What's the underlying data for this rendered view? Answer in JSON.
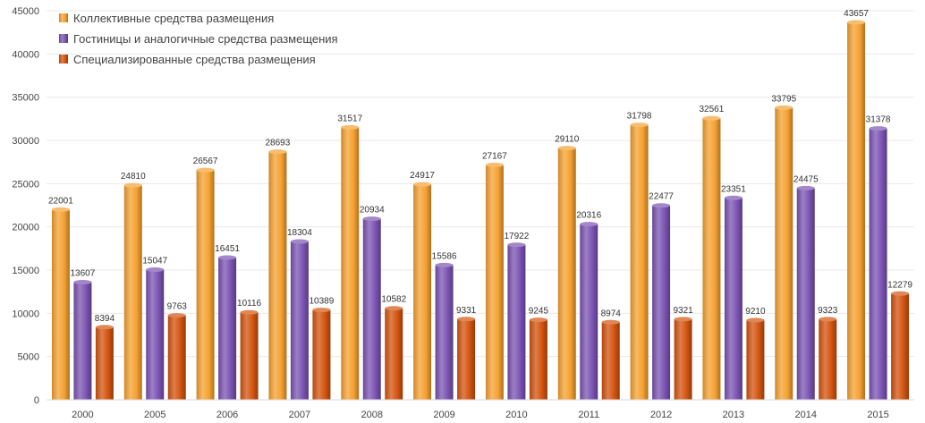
{
  "chart_data": {
    "type": "bar",
    "title": "",
    "xlabel": "",
    "ylabel": "",
    "ylim": [
      0,
      45000
    ],
    "yticks": [
      "0",
      "5000",
      "10000",
      "15000",
      "20000",
      "25000",
      "30000",
      "35000",
      "40000",
      "45000"
    ],
    "grid": true,
    "legend_position": "top-left",
    "categories": [
      "2000",
      "2005",
      "2006",
      "2007",
      "2008",
      "2009",
      "2010",
      "2011",
      "2012",
      "2013",
      "2014",
      "2015"
    ],
    "series": [
      {
        "name": "Коллективные средства размещения",
        "color": "#f5a131",
        "values": [
          22001,
          24810,
          26567,
          28693,
          31517,
          24917,
          27167,
          29110,
          31798,
          32561,
          33795,
          43657
        ]
      },
      {
        "name": "Гостиницы и аналогичные средства размещения",
        "color": "#7b54b3",
        "values": [
          13607,
          15047,
          16451,
          18304,
          20934,
          15586,
          17922,
          20316,
          22477,
          23351,
          24475,
          31378
        ]
      },
      {
        "name": "Специализированные средства размещения",
        "color": "#d3540f",
        "values": [
          8394,
          9763,
          10116,
          10389,
          10582,
          9331,
          9245,
          8974,
          9321,
          9210,
          9323,
          12279
        ]
      }
    ]
  }
}
